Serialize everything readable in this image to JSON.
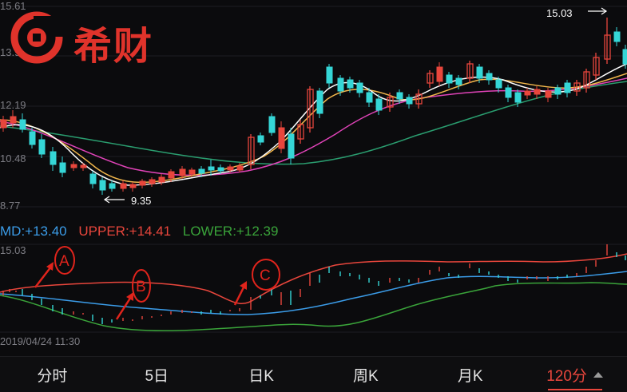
{
  "app": {
    "logo_text": "希财"
  },
  "main_chart": {
    "y_labels": [
      "15.61",
      "13.9",
      "12.19",
      "10.48",
      "8.77"
    ],
    "annotations": {
      "high": "15.03",
      "low": "9.35"
    },
    "colors": {
      "up": "#e8463c",
      "down": "#35d6d6",
      "ma5": "#ffffff",
      "ma10": "#f2b74c",
      "ma20": "#e043b8",
      "ma60": "#2a9d6f"
    }
  },
  "indicator": {
    "legend": {
      "mid": "MD:+13.40",
      "upper": "UPPER:+14.41",
      "lower": "LOWER:+12.39"
    },
    "y_top_label": "15.03",
    "x_label": "2019/04/24 11:30",
    "markers": [
      "A",
      "B",
      "C"
    ],
    "colors": {
      "mid": "#3b9ce8",
      "upper": "#e8463c",
      "lower": "#3aa43a"
    }
  },
  "tabs": [
    {
      "label": "分时",
      "active": false
    },
    {
      "label": "5日",
      "active": false
    },
    {
      "label": "日K",
      "active": false
    },
    {
      "label": "周K",
      "active": false
    },
    {
      "label": "月K",
      "active": false
    },
    {
      "label": "120分",
      "active": true
    }
  ]
}
